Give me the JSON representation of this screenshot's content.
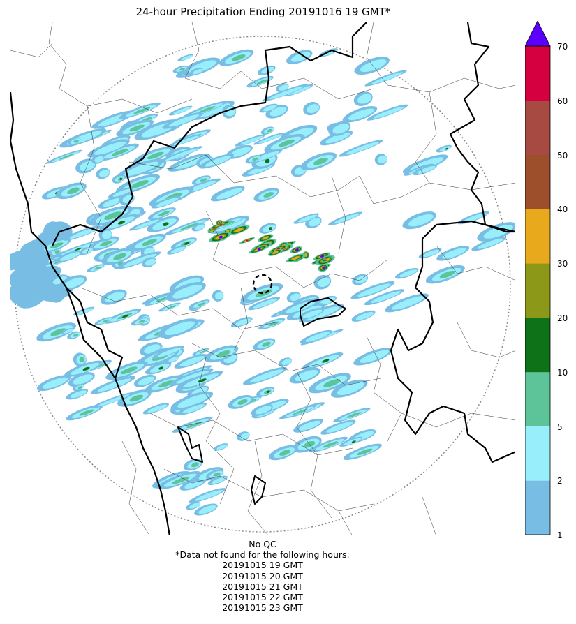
{
  "title": "24-hour Precipitation Ending 20191016 19 GMT*",
  "colorbar": {
    "ticks": [
      "1",
      "2",
      "5",
      "10",
      "20",
      "30",
      "40",
      "50",
      "60",
      "70"
    ],
    "colors": [
      "#78bde3",
      "#98eefa",
      "#5dc49a",
      "#0e7219",
      "#8b9818",
      "#e8a91c",
      "#9c4f2a",
      "#a64a42",
      "#d5003f"
    ],
    "overflow_color": "#5b00ff",
    "extend": "max"
  },
  "notes": {
    "qc": "No QC",
    "missing_header": "*Data not found for the following hours:",
    "missing_hours": [
      "20191015 19 GMT",
      "20191015 20 GMT",
      "20191015 21 GMT",
      "20191015 22 GMT",
      "20191015 23 GMT"
    ]
  }
}
